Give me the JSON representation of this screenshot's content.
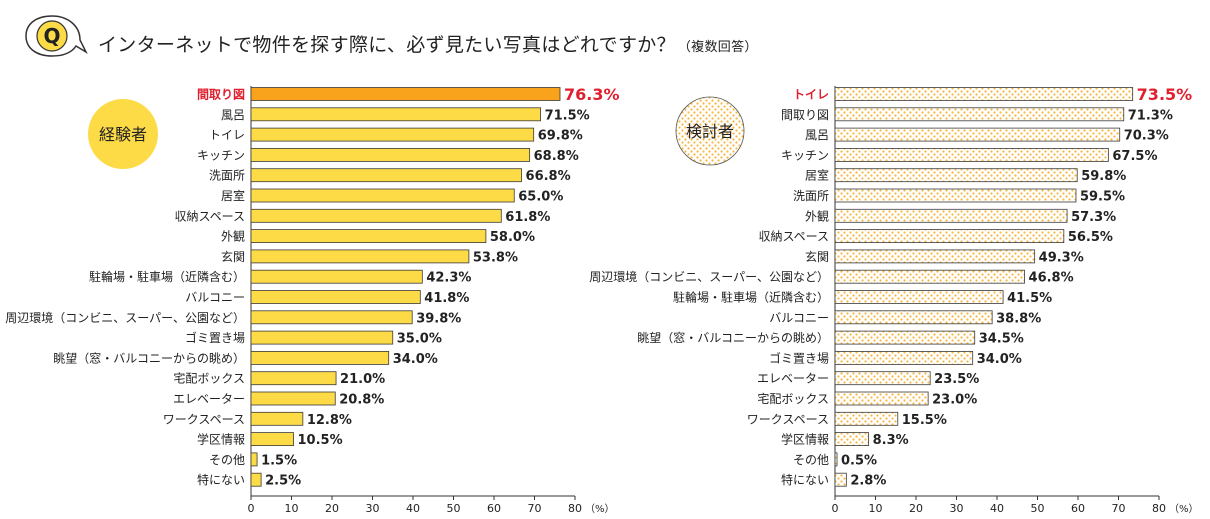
{
  "question": {
    "badge": "Q",
    "text": "インターネットで物件を探す際に、必ず見たい写真はどれですか？",
    "note": "（複数回答）"
  },
  "colors": {
    "bar_fill": "#FDDB47",
    "bar_highlight": "#F9A21B",
    "bar_outline": "#3a3a3a",
    "highlight_text": "#E0202E",
    "dot_fill": "#F6B73C",
    "badge_fill": "#FDDB47"
  },
  "axis_unit": "（%）",
  "chart_data": [
    {
      "type": "bar",
      "orientation": "horizontal",
      "group_label": "経験者",
      "style": "solid",
      "highlight_index": 0,
      "xlim": [
        0,
        80
      ],
      "xticks": [
        0,
        10,
        20,
        30,
        40,
        50,
        60,
        70,
        80
      ],
      "categories": [
        "間取り図",
        "風呂",
        "トイレ",
        "キッチン",
        "洗面所",
        "居室",
        "収納スペース",
        "外観",
        "玄関",
        "駐輪場・駐車場（近隣含む）",
        "バルコニー",
        "周辺環境（コンビニ、スーパー、公園など）",
        "ゴミ置き場",
        "眺望（窓・バルコニーからの眺め）",
        "宅配ボックス",
        "エレベーター",
        "ワークスペース",
        "学区情報",
        "その他",
        "特にない"
      ],
      "values": [
        76.3,
        71.5,
        69.8,
        68.8,
        66.8,
        65.0,
        61.8,
        58.0,
        53.8,
        42.3,
        41.8,
        39.8,
        35.0,
        34.0,
        21.0,
        20.8,
        12.8,
        10.5,
        1.5,
        2.5
      ],
      "labels": [
        "76.3%",
        "71.5%",
        "69.8%",
        "68.8%",
        "66.8%",
        "65.0%",
        "61.8%",
        "58.0%",
        "53.8%",
        "42.3%",
        "41.8%",
        "39.8%",
        "35.0%",
        "34.0%",
        "21.0%",
        "20.8%",
        "12.8%",
        "10.5%",
        "1.5%",
        "2.5%"
      ]
    },
    {
      "type": "bar",
      "orientation": "horizontal",
      "group_label": "検討者",
      "style": "dotted",
      "highlight_index": 0,
      "xlim": [
        0,
        80
      ],
      "xticks": [
        0,
        10,
        20,
        30,
        40,
        50,
        60,
        70,
        80
      ],
      "categories": [
        "トイレ",
        "間取り図",
        "風呂",
        "キッチン",
        "居室",
        "洗面所",
        "外観",
        "収納スペース",
        "玄関",
        "周辺環境（コンビニ、スーパー、公園など）",
        "駐輪場・駐車場（近隣含む）",
        "バルコニー",
        "眺望（窓・バルコニーからの眺め）",
        "ゴミ置き場",
        "エレベーター",
        "宅配ボックス",
        "ワークスペース",
        "学区情報",
        "その他",
        "特にない"
      ],
      "values": [
        73.5,
        71.3,
        70.3,
        67.5,
        59.8,
        59.5,
        57.3,
        56.5,
        49.3,
        46.8,
        41.5,
        38.8,
        34.5,
        34.0,
        23.5,
        23.0,
        15.5,
        8.3,
        0.5,
        2.8
      ],
      "labels": [
        "73.5%",
        "71.3%",
        "70.3%",
        "67.5%",
        "59.8%",
        "59.5%",
        "57.3%",
        "56.5%",
        "49.3%",
        "46.8%",
        "41.5%",
        "38.8%",
        "34.5%",
        "34.0%",
        "23.5%",
        "23.0%",
        "15.5%",
        "8.3%",
        "0.5%",
        "2.8%"
      ]
    }
  ]
}
